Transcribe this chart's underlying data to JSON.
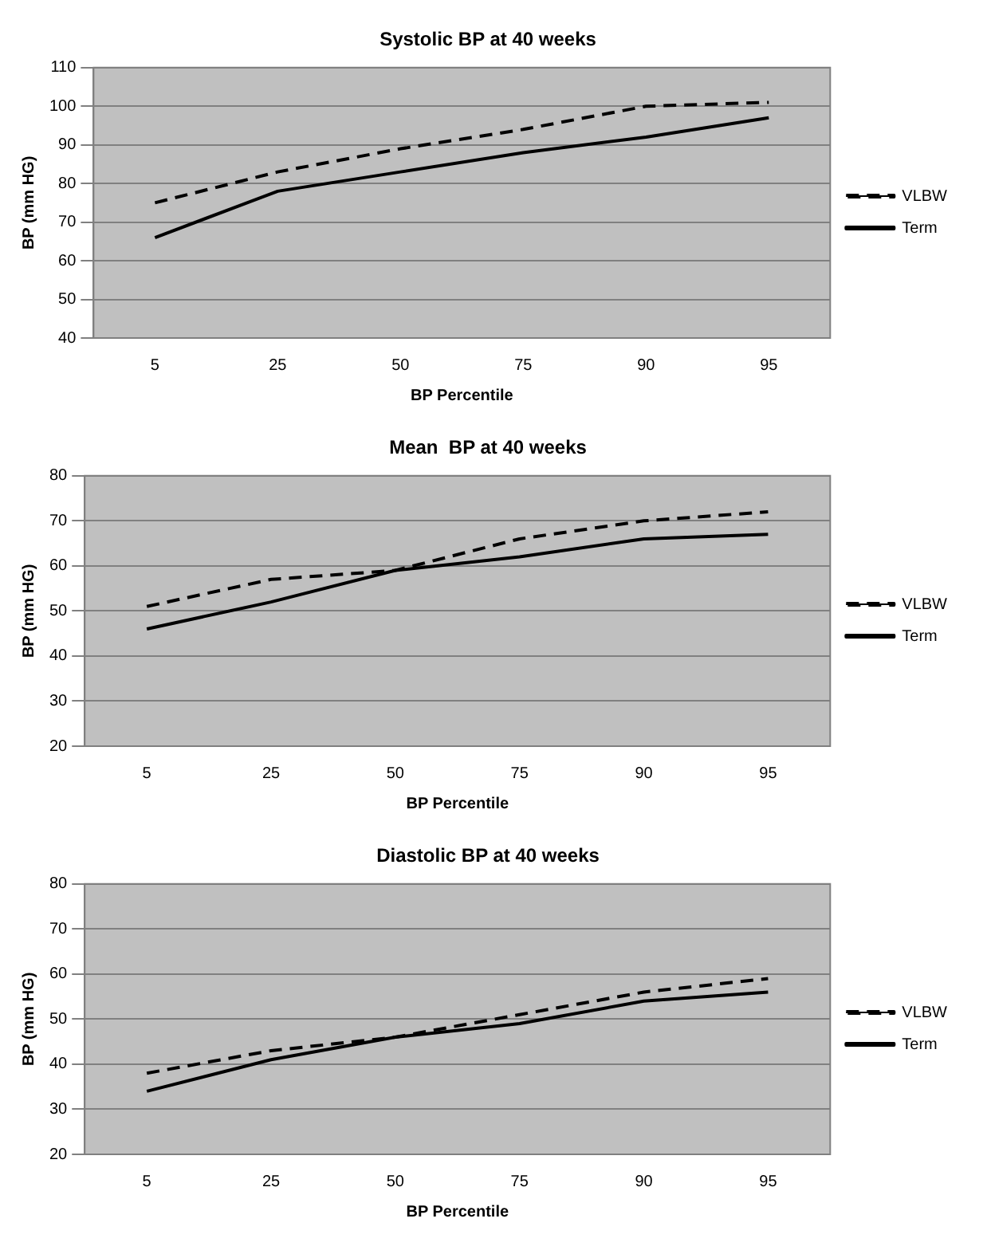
{
  "chart_data": [
    {
      "type": "line",
      "title": "Systolic BP at 40 weeks",
      "xlabel": "BP Percentile",
      "ylabel": "BP (mm HG)",
      "categories": [
        "5",
        "25",
        "50",
        "75",
        "90",
        "95"
      ],
      "ylim": [
        40,
        110
      ],
      "yticks": [
        40,
        50,
        60,
        70,
        80,
        90,
        100,
        110
      ],
      "grid": "y",
      "legend": "right",
      "marker": "none",
      "series": [
        {
          "name": "VLBW",
          "color": "#000000",
          "line_style": "dashed",
          "values": [
            75,
            83,
            89,
            94,
            100,
            101
          ]
        },
        {
          "name": "Term",
          "color": "#000000",
          "line_style": "solid",
          "values": [
            66,
            78,
            83,
            88,
            92,
            97
          ]
        }
      ]
    },
    {
      "type": "line",
      "title": "Mean  BP at 40 weeks",
      "xlabel": "BP Percentile",
      "ylabel": "BP (mm HG)",
      "categories": [
        "5",
        "25",
        "50",
        "75",
        "90",
        "95"
      ],
      "ylim": [
        20,
        80
      ],
      "yticks": [
        20,
        30,
        40,
        50,
        60,
        70,
        80
      ],
      "grid": "y",
      "legend": "right",
      "marker": "none",
      "series": [
        {
          "name": "VLBW",
          "color": "#000000",
          "line_style": "dashed",
          "values": [
            51,
            57,
            59,
            66,
            70,
            72
          ]
        },
        {
          "name": "Term",
          "color": "#000000",
          "line_style": "solid",
          "values": [
            46,
            52,
            59,
            62,
            66,
            67
          ]
        }
      ]
    },
    {
      "type": "line",
      "title": "Diastolic BP at 40 weeks",
      "xlabel": "BP Percentile",
      "ylabel": "BP (mm HG)",
      "categories": [
        "5",
        "25",
        "50",
        "75",
        "90",
        "95"
      ],
      "ylim": [
        20,
        80
      ],
      "yticks": [
        20,
        30,
        40,
        50,
        60,
        70,
        80
      ],
      "grid": "y",
      "legend": "right",
      "marker": "none",
      "series": [
        {
          "name": "VLBW",
          "color": "#000000",
          "line_style": "dashed",
          "values": [
            38,
            43,
            46,
            51,
            56,
            59
          ]
        },
        {
          "name": "Term",
          "color": "#000000",
          "line_style": "solid",
          "values": [
            34,
            41,
            46,
            49,
            54,
            56
          ]
        }
      ]
    }
  ]
}
